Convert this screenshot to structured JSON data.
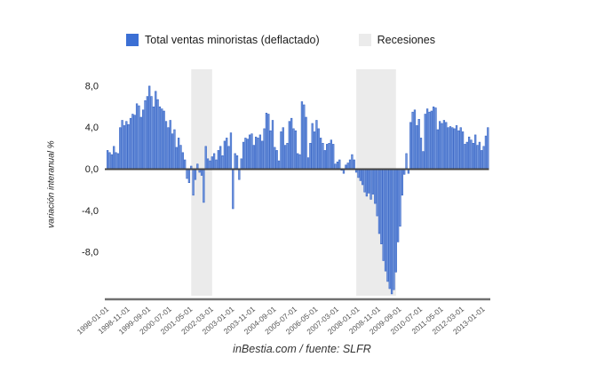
{
  "legend": {
    "series_label": "Total ventas minoristas (deflactado)",
    "recessions_label": "Recesiones"
  },
  "footer": {
    "caption": "inBestia.com / fuente: SLFR"
  },
  "colors": {
    "legend_series_swatch": "#3b6fd4",
    "bar_fill": "#6e94dd",
    "bar_stroke": "#3a67c6",
    "recession_band": "#ebebeb",
    "zero_line": "#444444",
    "axis_line": "#707070",
    "x_tick_text": "#555555",
    "y_tick_text": "#1a1a1a"
  },
  "chart_data": {
    "type": "bar",
    "title": "",
    "xlabel": "",
    "ylabel": "variación interanual %",
    "frequency": "monthly",
    "start_month": "1998-01",
    "end_month": "2013-03",
    "ylim": [
      -12.5,
      8.5
    ],
    "grid": false,
    "legend_position": "top",
    "y_ticks": [
      {
        "value": 8,
        "label": "8,0"
      },
      {
        "value": 4,
        "label": "4,0"
      },
      {
        "value": 0,
        "label": "0,0"
      },
      {
        "value": -4,
        "label": "-4,0"
      },
      {
        "value": -8,
        "label": "-8,0"
      }
    ],
    "x_ticks": [
      {
        "index": 0,
        "label": "1998-01-01"
      },
      {
        "index": 10,
        "label": "1998-11-01"
      },
      {
        "index": 20,
        "label": "1999-09-01"
      },
      {
        "index": 30,
        "label": "2000-07-01"
      },
      {
        "index": 40,
        "label": "2001-05-01"
      },
      {
        "index": 50,
        "label": "2002-03-01"
      },
      {
        "index": 60,
        "label": "2003-01-01"
      },
      {
        "index": 70,
        "label": "2003-11-01"
      },
      {
        "index": 80,
        "label": "2004-09-01"
      },
      {
        "index": 90,
        "label": "2005-07-01"
      },
      {
        "index": 100,
        "label": "2006-05-01"
      },
      {
        "index": 110,
        "label": "2007-03-01"
      },
      {
        "index": 120,
        "label": "2008-01-01"
      },
      {
        "index": 130,
        "label": "2008-11-01"
      },
      {
        "index": 140,
        "label": "2009-09-01"
      },
      {
        "index": 150,
        "label": "2010-07-01"
      },
      {
        "index": 160,
        "label": "2011-05-01"
      },
      {
        "index": 170,
        "label": "2012-03-01"
      },
      {
        "index": 180,
        "label": "2013-01-01"
      }
    ],
    "recessions": {
      "name": "Recesiones",
      "periods": [
        {
          "from_index": 40.5,
          "to_index": 50.5,
          "approx_dates": "2001-05 a 2002-03"
        },
        {
          "from_index": 119.5,
          "to_index": 138.5,
          "approx_dates": "2008-01 a 2009-07"
        }
      ]
    },
    "series": [
      {
        "name": "Total ventas minoristas (deflactado)",
        "values": [
          1.8,
          1.6,
          1.4,
          2.2,
          1.6,
          1.5,
          4.0,
          4.7,
          4.2,
          4.6,
          4.3,
          4.9,
          5.3,
          5.2,
          6.3,
          6.1,
          5.0,
          5.7,
          6.6,
          7.0,
          8.0,
          7.0,
          6.0,
          7.5,
          6.7,
          6.0,
          5.8,
          5.6,
          4.6,
          4.0,
          4.7,
          3.4,
          3.8,
          2.1,
          3.0,
          2.3,
          1.6,
          0.9,
          -0.9,
          -1.3,
          0.3,
          -2.5,
          -1.0,
          0.5,
          -0.3,
          -0.6,
          -3.2,
          2.2,
          1.0,
          0.8,
          1.2,
          1.5,
          0.9,
          1.8,
          2.2,
          1.3,
          2.7,
          3.0,
          2.2,
          3.5,
          -3.8,
          1.5,
          1.3,
          -1.0,
          1.0,
          2.6,
          3.0,
          2.9,
          3.3,
          3.4,
          2.3,
          3.1,
          3.0,
          3.3,
          2.7,
          3.9,
          5.4,
          5.3,
          3.7,
          4.7,
          2.1,
          1.8,
          0.8,
          3.6,
          4.0,
          2.3,
          2.5,
          4.6,
          4.9,
          3.9,
          3.7,
          1.5,
          1.4,
          6.5,
          6.2,
          5.0,
          1.1,
          2.5,
          4.4,
          3.6,
          4.7,
          3.9,
          3.0,
          2.5,
          1.8,
          2.4,
          2.5,
          2.8,
          2.4,
          0.5,
          0.7,
          0.9,
          -0.1,
          -0.4,
          0.4,
          0.6,
          0.9,
          1.4,
          0.9,
          -0.3,
          -0.8,
          -1.1,
          -1.5,
          -2.2,
          -2.6,
          -2.3,
          -2.9,
          -2.4,
          -3.3,
          -4.5,
          -6.2,
          -7.2,
          -8.8,
          -9.8,
          -10.8,
          -11.5,
          -12.0,
          -11.6,
          -9.9,
          -7.0,
          -5.5,
          -2.5,
          -0.5,
          1.5,
          -0.4,
          4.5,
          5.5,
          5.7,
          4.2,
          4.8,
          3.0,
          1.7,
          5.3,
          5.8,
          5.5,
          5.6,
          6.0,
          5.9,
          3.8,
          4.6,
          4.4,
          4.7,
          4.5,
          4.0,
          4.1,
          4.0,
          3.9,
          4.2,
          3.7,
          4.0,
          3.6,
          2.4,
          2.6,
          3.1,
          2.8,
          2.5,
          3.3,
          2.3,
          2.6,
          1.8,
          2.2,
          3.2,
          4.0
        ]
      }
    ]
  }
}
